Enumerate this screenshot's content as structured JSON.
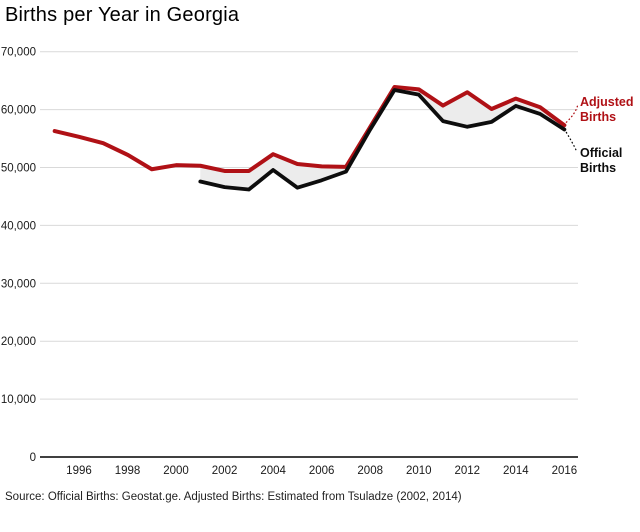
{
  "title": "Births per Year in Georgia",
  "source": "Source: Official Births: Geostat.ge. Adjusted Births: Estimated from Tsuladze (2002, 2014)",
  "colors": {
    "adjusted_red": "#b01116",
    "official_black": "#0d0d0d",
    "grid": "#d9d9d9",
    "axis": "#000000",
    "gap_fill": "#ececec",
    "background": "#ffffff"
  },
  "chart_data": {
    "type": "line",
    "title": "Births per Year in Georgia",
    "xlabel": "",
    "ylabel": "",
    "xlim": [
      1994.4,
      2016.6
    ],
    "ylim": [
      0,
      70000
    ],
    "grid": "horizontal gridlines every 10,000; x-axis drawn solid black at 0",
    "legend_position": "direct end-of-line labels at right with dotted leader lines",
    "x_ticks": [
      1996,
      1998,
      2000,
      2002,
      2004,
      2006,
      2008,
      2010,
      2012,
      2014,
      2016
    ],
    "y_ticks": [
      0,
      10000,
      20000,
      30000,
      40000,
      50000,
      60000,
      70000
    ],
    "y_tick_labels": [
      "0",
      "10,000",
      "20,000",
      "30,000",
      "40,000",
      "50,000",
      "60,000",
      "70,000"
    ],
    "fill_between": {
      "description": "light gray area between Adjusted and Official lines, 2001-2016",
      "color": "#ececec"
    },
    "series": [
      {
        "name": "Adjusted Births",
        "label_lines": [
          "Adjusted",
          "Births"
        ],
        "color": "#b01116",
        "x": [
          1995,
          1996,
          1997,
          1998,
          1999,
          2000,
          2001,
          2002,
          2003,
          2004,
          2005,
          2006,
          2007,
          2008,
          2009,
          2010,
          2011,
          2012,
          2013,
          2014,
          2015,
          2016
        ],
        "values": [
          56300,
          55300,
          54200,
          52200,
          49700,
          50400,
          50300,
          49400,
          49400,
          52300,
          50600,
          50200,
          50100,
          57000,
          63900,
          63500,
          60700,
          63000,
          60100,
          61900,
          60400,
          57300
        ]
      },
      {
        "name": "Official Births",
        "label_lines": [
          "Official",
          "Births"
        ],
        "color": "#0d0d0d",
        "x": [
          2001,
          2002,
          2003,
          2004,
          2005,
          2006,
          2007,
          2008,
          2009,
          2010,
          2011,
          2012,
          2013,
          2014,
          2015,
          2016
        ],
        "values": [
          47580,
          46605,
          46194,
          49572,
          46512,
          47795,
          49287,
          56565,
          63377,
          62585,
          58014,
          57031,
          57878,
          60635,
          59249,
          56569
        ]
      }
    ]
  }
}
